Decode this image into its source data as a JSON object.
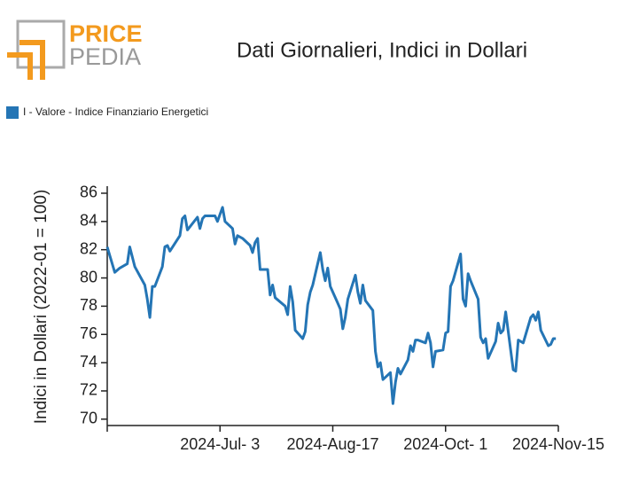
{
  "logo": {
    "top": "PRICE",
    "bottom": "PEDIA"
  },
  "chart_data": {
    "type": "line",
    "title": "Dati Giornalieri, Indici in Dollari",
    "y_label": "Indici in Dollari (2022-01 = 100)",
    "legend_position": "top-left",
    "xlim": [
      "2024-05-19",
      "2024-11-15"
    ],
    "xticks": [
      {
        "value": "2024-07-03",
        "label": "2024-Jul- 3"
      },
      {
        "value": "2024-08-17",
        "label": "2024-Aug-17"
      },
      {
        "value": "2024-10-01",
        "label": "2024-Oct- 1"
      },
      {
        "value": "2024-11-15",
        "label": "2024-Nov-15"
      }
    ],
    "ylim": [
      69.55,
      86.5
    ],
    "yticks": [
      70,
      72,
      74,
      76,
      78,
      80,
      82,
      84,
      86
    ],
    "x": [
      "2024-05-19",
      "2024-05-20",
      "2024-05-22",
      "2024-05-24",
      "2024-05-27",
      "2024-05-28",
      "2024-05-30",
      "2024-06-03",
      "2024-06-04",
      "2024-06-05",
      "2024-06-06",
      "2024-06-07",
      "2024-06-10",
      "2024-06-11",
      "2024-06-12",
      "2024-06-13",
      "2024-06-17",
      "2024-06-18",
      "2024-06-19",
      "2024-06-20",
      "2024-06-24",
      "2024-06-25",
      "2024-06-26",
      "2024-06-27",
      "2024-07-01",
      "2024-07-02",
      "2024-07-04",
      "2024-07-05",
      "2024-07-08",
      "2024-07-09",
      "2024-07-10",
      "2024-07-12",
      "2024-07-15",
      "2024-07-16",
      "2024-07-17",
      "2024-07-18",
      "2024-07-19",
      "2024-07-22",
      "2024-07-23",
      "2024-07-24",
      "2024-07-25",
      "2024-07-29",
      "2024-07-30",
      "2024-07-31",
      "2024-08-01",
      "2024-08-02",
      "2024-08-05",
      "2024-08-06",
      "2024-08-07",
      "2024-08-08",
      "2024-08-09",
      "2024-08-12",
      "2024-08-13",
      "2024-08-14",
      "2024-08-15",
      "2024-08-16",
      "2024-08-19",
      "2024-08-20",
      "2024-08-21",
      "2024-08-22",
      "2024-08-23",
      "2024-08-26",
      "2024-08-27",
      "2024-08-28",
      "2024-08-29",
      "2024-08-30",
      "2024-09-02",
      "2024-09-03",
      "2024-09-04",
      "2024-09-05",
      "2024-09-06",
      "2024-09-09",
      "2024-09-10",
      "2024-09-11",
      "2024-09-12",
      "2024-09-13",
      "2024-09-16",
      "2024-09-17",
      "2024-09-18",
      "2024-09-19",
      "2024-09-20",
      "2024-09-23",
      "2024-09-24",
      "2024-09-25",
      "2024-09-26",
      "2024-09-27",
      "2024-09-30",
      "2024-10-01",
      "2024-10-02",
      "2024-10-03",
      "2024-10-04",
      "2024-10-07",
      "2024-10-08",
      "2024-10-09",
      "2024-10-10",
      "2024-10-11",
      "2024-10-14",
      "2024-10-15",
      "2024-10-16",
      "2024-10-17",
      "2024-10-18",
      "2024-10-21",
      "2024-10-22",
      "2024-10-23",
      "2024-10-24",
      "2024-10-25",
      "2024-10-28",
      "2024-10-29",
      "2024-10-30",
      "2024-10-31",
      "2024-11-01",
      "2024-11-04",
      "2024-11-05",
      "2024-11-06",
      "2024-11-07",
      "2024-11-08",
      "2024-11-11",
      "2024-11-12",
      "2024-11-13",
      "2024-11-14"
    ],
    "series": [
      {
        "name": "I - Valore - Indice Finanziario Energetici",
        "color": "#2475b5",
        "values": [
          82.2,
          81.6,
          80.4,
          80.7,
          81.0,
          82.2,
          80.8,
          79.5,
          78.5,
          77.2,
          79.4,
          79.4,
          80.8,
          82.2,
          82.3,
          81.9,
          83.0,
          84.2,
          84.4,
          83.4,
          84.3,
          83.5,
          84.2,
          84.4,
          84.4,
          84.0,
          85.0,
          84.0,
          83.5,
          82.4,
          83.0,
          82.8,
          82.3,
          81.8,
          82.5,
          82.8,
          80.6,
          80.6,
          78.8,
          79.5,
          78.6,
          78.0,
          77.4,
          79.4,
          78.3,
          76.3,
          75.7,
          76.2,
          78.1,
          79.0,
          79.5,
          81.8,
          80.6,
          79.8,
          80.7,
          79.4,
          78.2,
          77.8,
          76.4,
          77.2,
          78.5,
          80.2,
          79.0,
          78.2,
          79.5,
          78.4,
          77.7,
          74.8,
          73.7,
          74.0,
          72.8,
          73.3,
          71.1,
          72.6,
          73.6,
          73.2,
          74.2,
          75.2,
          74.8,
          75.6,
          75.6,
          75.4,
          76.1,
          75.4,
          73.7,
          74.8,
          74.9,
          76.1,
          76.2,
          79.4,
          79.8,
          81.7,
          78.5,
          78.0,
          80.3,
          79.8,
          78.5,
          75.8,
          75.4,
          75.7,
          74.3,
          75.5,
          76.8,
          76.1,
          76.3,
          77.6,
          73.5,
          73.4,
          75.6,
          75.5,
          75.4,
          77.2,
          77.4,
          77.0,
          77.6,
          76.3,
          75.2,
          75.3,
          75.7,
          75.7
        ]
      }
    ]
  }
}
